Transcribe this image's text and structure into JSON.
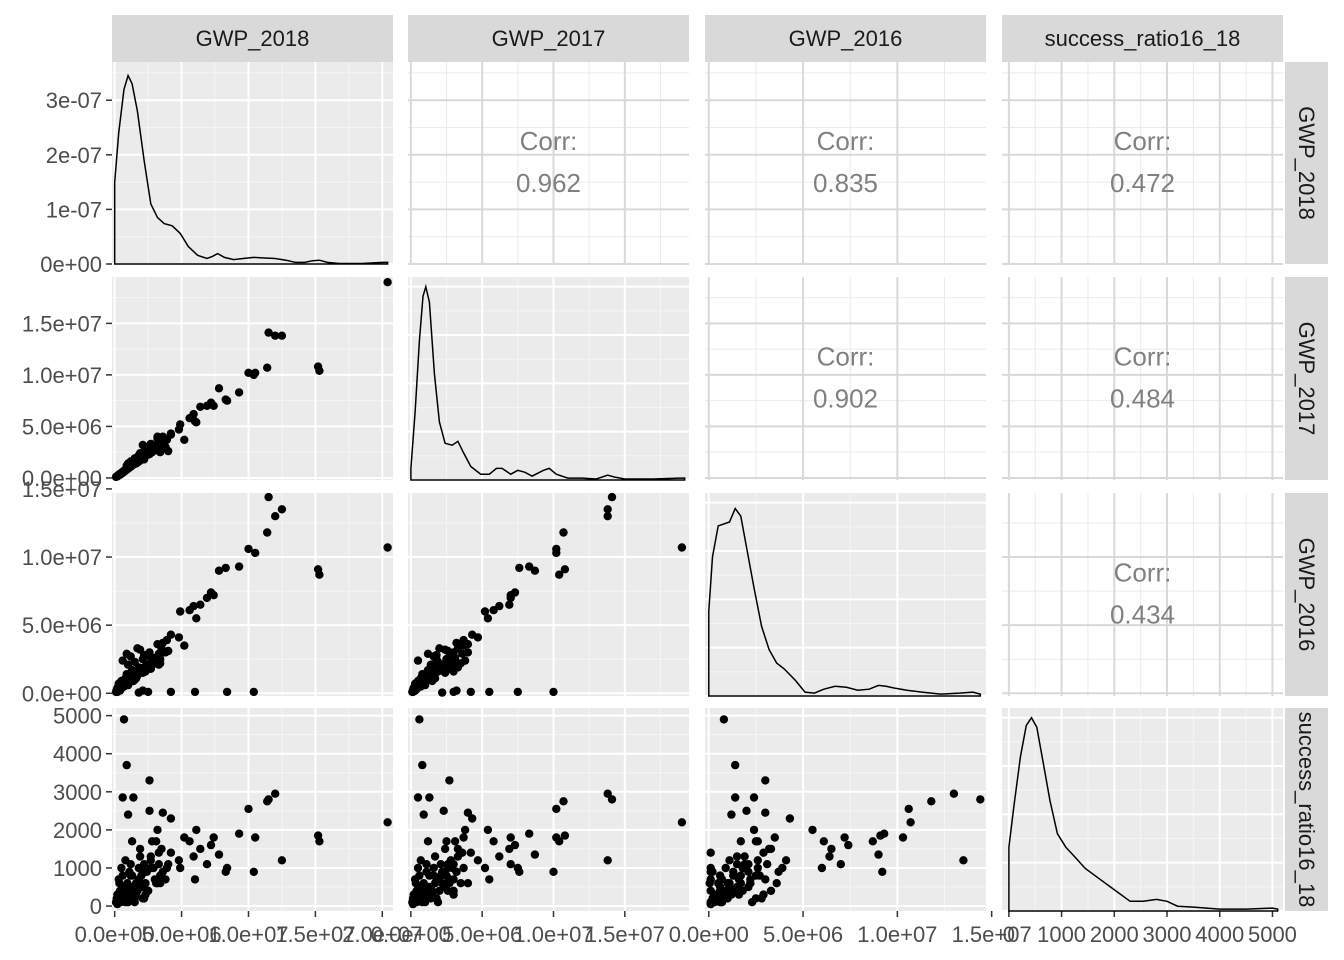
{
  "chart_data": {
    "type": "scatterplot-matrix",
    "variables": [
      "GWP_2018",
      "GWP_2017",
      "GWP_2016",
      "success_ratio16_18"
    ],
    "correlations": [
      {
        "row": "GWP_2018",
        "col": "GWP_2017",
        "label": "Corr:",
        "value": "0.962"
      },
      {
        "row": "GWP_2018",
        "col": "GWP_2016",
        "label": "Corr:",
        "value": "0.835"
      },
      {
        "row": "GWP_2018",
        "col": "success_ratio16_18",
        "label": "Corr:",
        "value": "0.472"
      },
      {
        "row": "GWP_2017",
        "col": "GWP_2016",
        "label": "Corr:",
        "value": "0.902"
      },
      {
        "row": "GWP_2017",
        "col": "success_ratio16_18",
        "label": "Corr:",
        "value": "0.484"
      },
      {
        "row": "GWP_2016",
        "col": "success_ratio16_18",
        "label": "Corr:",
        "value": "0.434"
      }
    ],
    "x_ticks": {
      "GWP_2018": {
        "values": [
          0,
          5000000,
          10000000,
          15000000,
          20000000
        ],
        "labels": [
          "0.0e+00",
          "5.0e+06",
          "1.0e+07",
          "1.5e+07",
          "2.0e+07"
        ]
      },
      "GWP_2017": {
        "values": [
          0,
          5000000,
          10000000,
          15000000
        ],
        "labels": [
          "0.0e+00",
          "5.0e+06",
          "1.0e+07",
          "1.5e+07"
        ]
      },
      "GWP_2016": {
        "values": [
          0,
          5000000,
          10000000,
          15000000
        ],
        "labels": [
          "0.0e+00",
          "5.0e+06",
          "1.0e+07",
          "1.5e+07"
        ]
      },
      "success_ratio16_18": {
        "values": [
          0,
          1000,
          2000,
          3000,
          4000,
          5000
        ],
        "labels": [
          "0",
          "1000",
          "2000",
          "3000",
          "4000",
          "5000"
        ]
      }
    },
    "y_ticks": {
      "density_GWP_2018": {
        "values": [
          0,
          1e-07,
          2e-07,
          3e-07
        ],
        "labels": [
          "0e+00",
          "1e-07",
          "2e-07",
          "3e-07"
        ]
      },
      "GWP_2017": {
        "values": [
          0,
          5000000,
          10000000,
          15000000
        ],
        "labels": [
          "0.0e+00",
          "5.0e+06",
          "1.0e+07",
          "1.5e+07"
        ]
      },
      "GWP_2016": {
        "values": [
          0,
          5000000,
          10000000,
          15000000
        ],
        "labels": [
          "0.0e+00",
          "5.0e+06",
          "1.0e+07",
          "1.5e+07"
        ]
      },
      "success_ratio16_18": {
        "values": [
          0,
          1000,
          2000,
          3000,
          4000,
          5000
        ],
        "labels": [
          "0",
          "1000",
          "2000",
          "3000",
          "4000",
          "5000"
        ]
      }
    },
    "ranges": {
      "GWP_2018": [
        -200000,
        20800000
      ],
      "GWP_2017": [
        -200000,
        19500000
      ],
      "GWP_2016": [
        -200000,
        14700000
      ],
      "success_ratio16_18": [
        -130,
        5200
      ]
    },
    "density_ylim": [
      0,
      3.7e-07
    ],
    "densities": {
      "GWP_2018": [
        [
          0,
          0
        ],
        [
          0,
          1.5e-07
        ],
        [
          300000,
          2.4e-07
        ],
        [
          700000,
          3.2e-07
        ],
        [
          1000000,
          3.45e-07
        ],
        [
          1300000,
          3.3e-07
        ],
        [
          1700000,
          2.8e-07
        ],
        [
          2200000,
          1.9e-07
        ],
        [
          2700000,
          1.1e-07
        ],
        [
          3200000,
          8.5e-08
        ],
        [
          3700000,
          7.4e-08
        ],
        [
          4300000,
          7e-08
        ],
        [
          4900000,
          5.6e-08
        ],
        [
          5500000,
          3.2e-08
        ],
        [
          6200000,
          1.6e-08
        ],
        [
          6900000,
          1e-08
        ],
        [
          7300000,
          1.4e-08
        ],
        [
          7700000,
          1.9e-08
        ],
        [
          8200000,
          1.2e-08
        ],
        [
          8900000,
          8e-09
        ],
        [
          9600000,
          1e-08
        ],
        [
          10400000,
          1.2e-08
        ],
        [
          11200000,
          1.1e-08
        ],
        [
          12000000,
          1e-08
        ],
        [
          12800000,
          7e-09
        ],
        [
          13500000,
          3e-09
        ],
        [
          14200000,
          3e-09
        ],
        [
          14800000,
          6e-09
        ],
        [
          15300000,
          7e-09
        ],
        [
          15900000,
          3e-09
        ],
        [
          16800000,
          1e-09
        ],
        [
          18500000,
          1e-09
        ],
        [
          20000000,
          3e-09
        ],
        [
          20400000,
          3e-09
        ]
      ],
      "GWP_2017": [
        [
          0,
          0
        ],
        [
          0,
          0.06
        ],
        [
          300000,
          0.35
        ],
        [
          600000,
          0.72
        ],
        [
          850000,
          0.95
        ],
        [
          1050000,
          1.0
        ],
        [
          1300000,
          0.92
        ],
        [
          1650000,
          0.55
        ],
        [
          2000000,
          0.3
        ],
        [
          2400000,
          0.19
        ],
        [
          2900000,
          0.18
        ],
        [
          3300000,
          0.2
        ],
        [
          3700000,
          0.14
        ],
        [
          4200000,
          0.07
        ],
        [
          4900000,
          0.03
        ],
        [
          5500000,
          0.03
        ],
        [
          6000000,
          0.06
        ],
        [
          6400000,
          0.06
        ],
        [
          7000000,
          0.03
        ],
        [
          7500000,
          0.05
        ],
        [
          8000000,
          0.04
        ],
        [
          8500000,
          0.02
        ],
        [
          9300000,
          0.05
        ],
        [
          9700000,
          0.06
        ],
        [
          10200000,
          0.03
        ],
        [
          11000000,
          0.01
        ],
        [
          12000000,
          0.01
        ],
        [
          13000000,
          0.005
        ],
        [
          13800000,
          0.025
        ],
        [
          14300000,
          0.015
        ],
        [
          15000000,
          0.005
        ],
        [
          17000000,
          0.005
        ],
        [
          18800000,
          0.01
        ],
        [
          19200000,
          0.01
        ]
      ],
      "GWP_2016": [
        [
          0,
          0
        ],
        [
          0,
          0.44
        ],
        [
          200000,
          0.72
        ],
        [
          500000,
          0.88
        ],
        [
          800000,
          0.89
        ],
        [
          1100000,
          0.9
        ],
        [
          1400000,
          0.97
        ],
        [
          1700000,
          0.93
        ],
        [
          2000000,
          0.77
        ],
        [
          2400000,
          0.56
        ],
        [
          2800000,
          0.36
        ],
        [
          3200000,
          0.24
        ],
        [
          3600000,
          0.17
        ],
        [
          4000000,
          0.14
        ],
        [
          4600000,
          0.08
        ],
        [
          5100000,
          0.02
        ],
        [
          5600000,
          0.015
        ],
        [
          6100000,
          0.035
        ],
        [
          6700000,
          0.05
        ],
        [
          7300000,
          0.045
        ],
        [
          7900000,
          0.03
        ],
        [
          8500000,
          0.035
        ],
        [
          9000000,
          0.055
        ],
        [
          9400000,
          0.05
        ],
        [
          9900000,
          0.04
        ],
        [
          10500000,
          0.03
        ],
        [
          11300000,
          0.02
        ],
        [
          12300000,
          0.01
        ],
        [
          13300000,
          0.015
        ],
        [
          14000000,
          0.02
        ],
        [
          14400000,
          0.01
        ]
      ],
      "success_ratio16_18": [
        [
          0,
          0
        ],
        [
          0,
          0.33
        ],
        [
          100,
          0.55
        ],
        [
          220,
          0.8
        ],
        [
          330,
          0.96
        ],
        [
          430,
          1.0
        ],
        [
          530,
          0.95
        ],
        [
          650,
          0.77
        ],
        [
          780,
          0.57
        ],
        [
          920,
          0.4
        ],
        [
          1080,
          0.33
        ],
        [
          1250,
          0.28
        ],
        [
          1450,
          0.22
        ],
        [
          1650,
          0.18
        ],
        [
          1900,
          0.13
        ],
        [
          2100,
          0.09
        ],
        [
          2300,
          0.05
        ],
        [
          2550,
          0.05
        ],
        [
          2800,
          0.06
        ],
        [
          3000,
          0.05
        ],
        [
          3200,
          0.025
        ],
        [
          3500,
          0.02
        ],
        [
          4000,
          0.01
        ],
        [
          4500,
          0.01
        ],
        [
          5000,
          0.015
        ],
        [
          5100,
          0.01
        ]
      ]
    },
    "points": [
      [
        20400000,
        19000000,
        10700000,
        2200
      ],
      [
        15200000,
        10800000,
        9100000,
        1850
      ],
      [
        15300000,
        10400000,
        8700000,
        1700
      ],
      [
        11500000,
        14100000,
        14400000,
        2800
      ],
      [
        12000000,
        13800000,
        13000000,
        2950
      ],
      [
        12500000,
        13800000,
        13500000,
        1200
      ],
      [
        11400000,
        10700000,
        11800000,
        2750
      ],
      [
        10000000,
        10200000,
        10600000,
        2550
      ],
      [
        10500000,
        10200000,
        10300000,
        1800
      ],
      [
        9300000,
        8300000,
        9300000,
        1900
      ],
      [
        8300000,
        7600000,
        9200000,
        900
      ],
      [
        7800000,
        8700000,
        9000000,
        1350
      ],
      [
        7200000,
        7300000,
        7400000,
        1600
      ],
      [
        6900000,
        7000000,
        7000000,
        1100
      ],
      [
        7400000,
        7000000,
        7200000,
        1800
      ],
      [
        6400000,
        6900000,
        6500000,
        1500
      ],
      [
        5900000,
        6200000,
        6400000,
        1300
      ],
      [
        5600000,
        5800000,
        6100000,
        1700
      ],
      [
        4900000,
        5200000,
        6000000,
        1000
      ],
      [
        6100000,
        5400000,
        5500000,
        2000
      ],
      [
        4800000,
        4700000,
        4100000,
        1200
      ],
      [
        5200000,
        3700000,
        3500000,
        1800
      ],
      [
        4200000,
        4300000,
        4300000,
        2300
      ],
      [
        3900000,
        3700000,
        3900000,
        1000
      ],
      [
        4000000,
        2600000,
        3100000,
        1100
      ],
      [
        3500000,
        3300000,
        3300000,
        1500
      ],
      [
        3800000,
        3000000,
        3000000,
        700
      ],
      [
        3200000,
        4000000,
        3600000,
        600
      ],
      [
        3300000,
        3600000,
        2900000,
        1400
      ],
      [
        3600000,
        4000000,
        3000000,
        2450
      ],
      [
        3400000,
        2500000,
        2500000,
        800
      ],
      [
        2900000,
        2900000,
        2600000,
        1000
      ],
      [
        2700000,
        2800000,
        2600000,
        1200
      ],
      [
        3100000,
        3100000,
        2600000,
        1700
      ],
      [
        3200000,
        3800000,
        2400000,
        2000
      ],
      [
        3100000,
        2700000,
        2200000,
        600
      ],
      [
        3300000,
        3000000,
        2100000,
        1100
      ],
      [
        3000000,
        2700000,
        2200000,
        700
      ],
      [
        2800000,
        2500000,
        2500000,
        1700
      ],
      [
        2600000,
        2300000,
        2000000,
        2500
      ],
      [
        2700000,
        2600000,
        1800000,
        1000
      ],
      [
        2500000,
        2600000,
        1800000,
        400
      ],
      [
        2400000,
        2200000,
        2100000,
        900
      ],
      [
        2300000,
        2500000,
        1700000,
        600
      ],
      [
        2200000,
        2100000,
        1900000,
        1100
      ],
      [
        2300000,
        3000000,
        1600000,
        300
      ],
      [
        2100000,
        2400000,
        1500000,
        500
      ],
      [
        2000000,
        2100000,
        1700000,
        800
      ],
      [
        2100000,
        1800000,
        2500000,
        200
      ],
      [
        1900000,
        1700000,
        1500000,
        1300
      ],
      [
        1800000,
        1900000,
        1600000,
        700
      ],
      [
        1700000,
        1500000,
        1300000,
        400
      ],
      [
        1800000,
        1600000,
        1900000,
        1000
      ],
      [
        1600000,
        1400000,
        1200000,
        300
      ],
      [
        1600000,
        1700000,
        1100000,
        600
      ],
      [
        1500000,
        1400000,
        1000000,
        200
      ],
      [
        1400000,
        1300000,
        1400000,
        2850
      ],
      [
        1400000,
        1500000,
        900000,
        300
      ],
      [
        1300000,
        1200000,
        1700000,
        1700
      ],
      [
        1300000,
        1300000,
        1300000,
        800
      ],
      [
        1200000,
        1200000,
        1100000,
        500
      ],
      [
        1200000,
        1100000,
        1500000,
        1100
      ],
      [
        1100000,
        1000000,
        800000,
        300
      ],
      [
        1100000,
        1100000,
        1300000,
        900
      ],
      [
        1000000,
        900000,
        1200000,
        2400
      ],
      [
        1000000,
        1000000,
        600000,
        100
      ],
      [
        950000,
        900000,
        1000000,
        600
      ],
      [
        900000,
        800000,
        1400000,
        3700
      ],
      [
        900000,
        900000,
        800000,
        200
      ],
      [
        850000,
        800000,
        900000,
        400
      ],
      [
        800000,
        700000,
        1100000,
        1200
      ],
      [
        800000,
        800000,
        700000,
        100
      ],
      [
        750000,
        700000,
        600000,
        500
      ],
      [
        700000,
        600000,
        800000,
        4900
      ],
      [
        700000,
        700000,
        500000,
        200
      ],
      [
        650000,
        600000,
        700000,
        300
      ],
      [
        600000,
        600000,
        600000,
        800
      ],
      [
        600000,
        500000,
        2400000,
        2850
      ],
      [
        550000,
        500000,
        500000,
        150
      ],
      [
        500000,
        400000,
        400000,
        300
      ],
      [
        500000,
        500000,
        900000,
        1000
      ],
      [
        450000,
        400000,
        300000,
        100
      ],
      [
        400000,
        400000,
        600000,
        400
      ],
      [
        400000,
        300000,
        200000,
        200
      ],
      [
        350000,
        350000,
        500000,
        600
      ],
      [
        300000,
        300000,
        300000,
        100
      ],
      [
        300000,
        300000,
        700000,
        700
      ],
      [
        250000,
        250000,
        200000,
        150
      ],
      [
        200000,
        200000,
        400000,
        300
      ],
      [
        200000,
        150000,
        100000,
        50
      ],
      [
        150000,
        150000,
        250000,
        200
      ],
      [
        100000,
        100000,
        100000,
        100
      ],
      [
        2100000,
        3200000,
        200000,
        900
      ],
      [
        2500000,
        3000000,
        100000,
        400
      ],
      [
        1800000,
        2200000,
        50000,
        600
      ],
      [
        4200000,
        4200000,
        100000,
        1400
      ],
      [
        6000000,
        5500000,
        100000,
        700
      ],
      [
        8400000,
        7500000,
        100000,
        1000
      ],
      [
        10400000,
        10000000,
        100000,
        900
      ],
      [
        2600000,
        2700000,
        3000000,
        3300
      ],
      [
        3400000,
        3500000,
        2200000,
        600
      ],
      [
        1900000,
        2400000,
        3200000,
        1500
      ],
      [
        2700000,
        3300000,
        1900000,
        1300
      ],
      [
        3600000,
        3200000,
        3700000,
        900
      ],
      [
        1000000,
        1400000,
        2100000,
        500
      ],
      [
        2200000,
        1800000,
        2800000,
        200
      ],
      [
        1500000,
        1900000,
        2300000,
        100
      ],
      [
        1200000,
        1600000,
        2700000,
        800
      ],
      [
        900000,
        1200000,
        2900000,
        300
      ],
      [
        1700000,
        2000000,
        3300000,
        400
      ]
    ]
  }
}
